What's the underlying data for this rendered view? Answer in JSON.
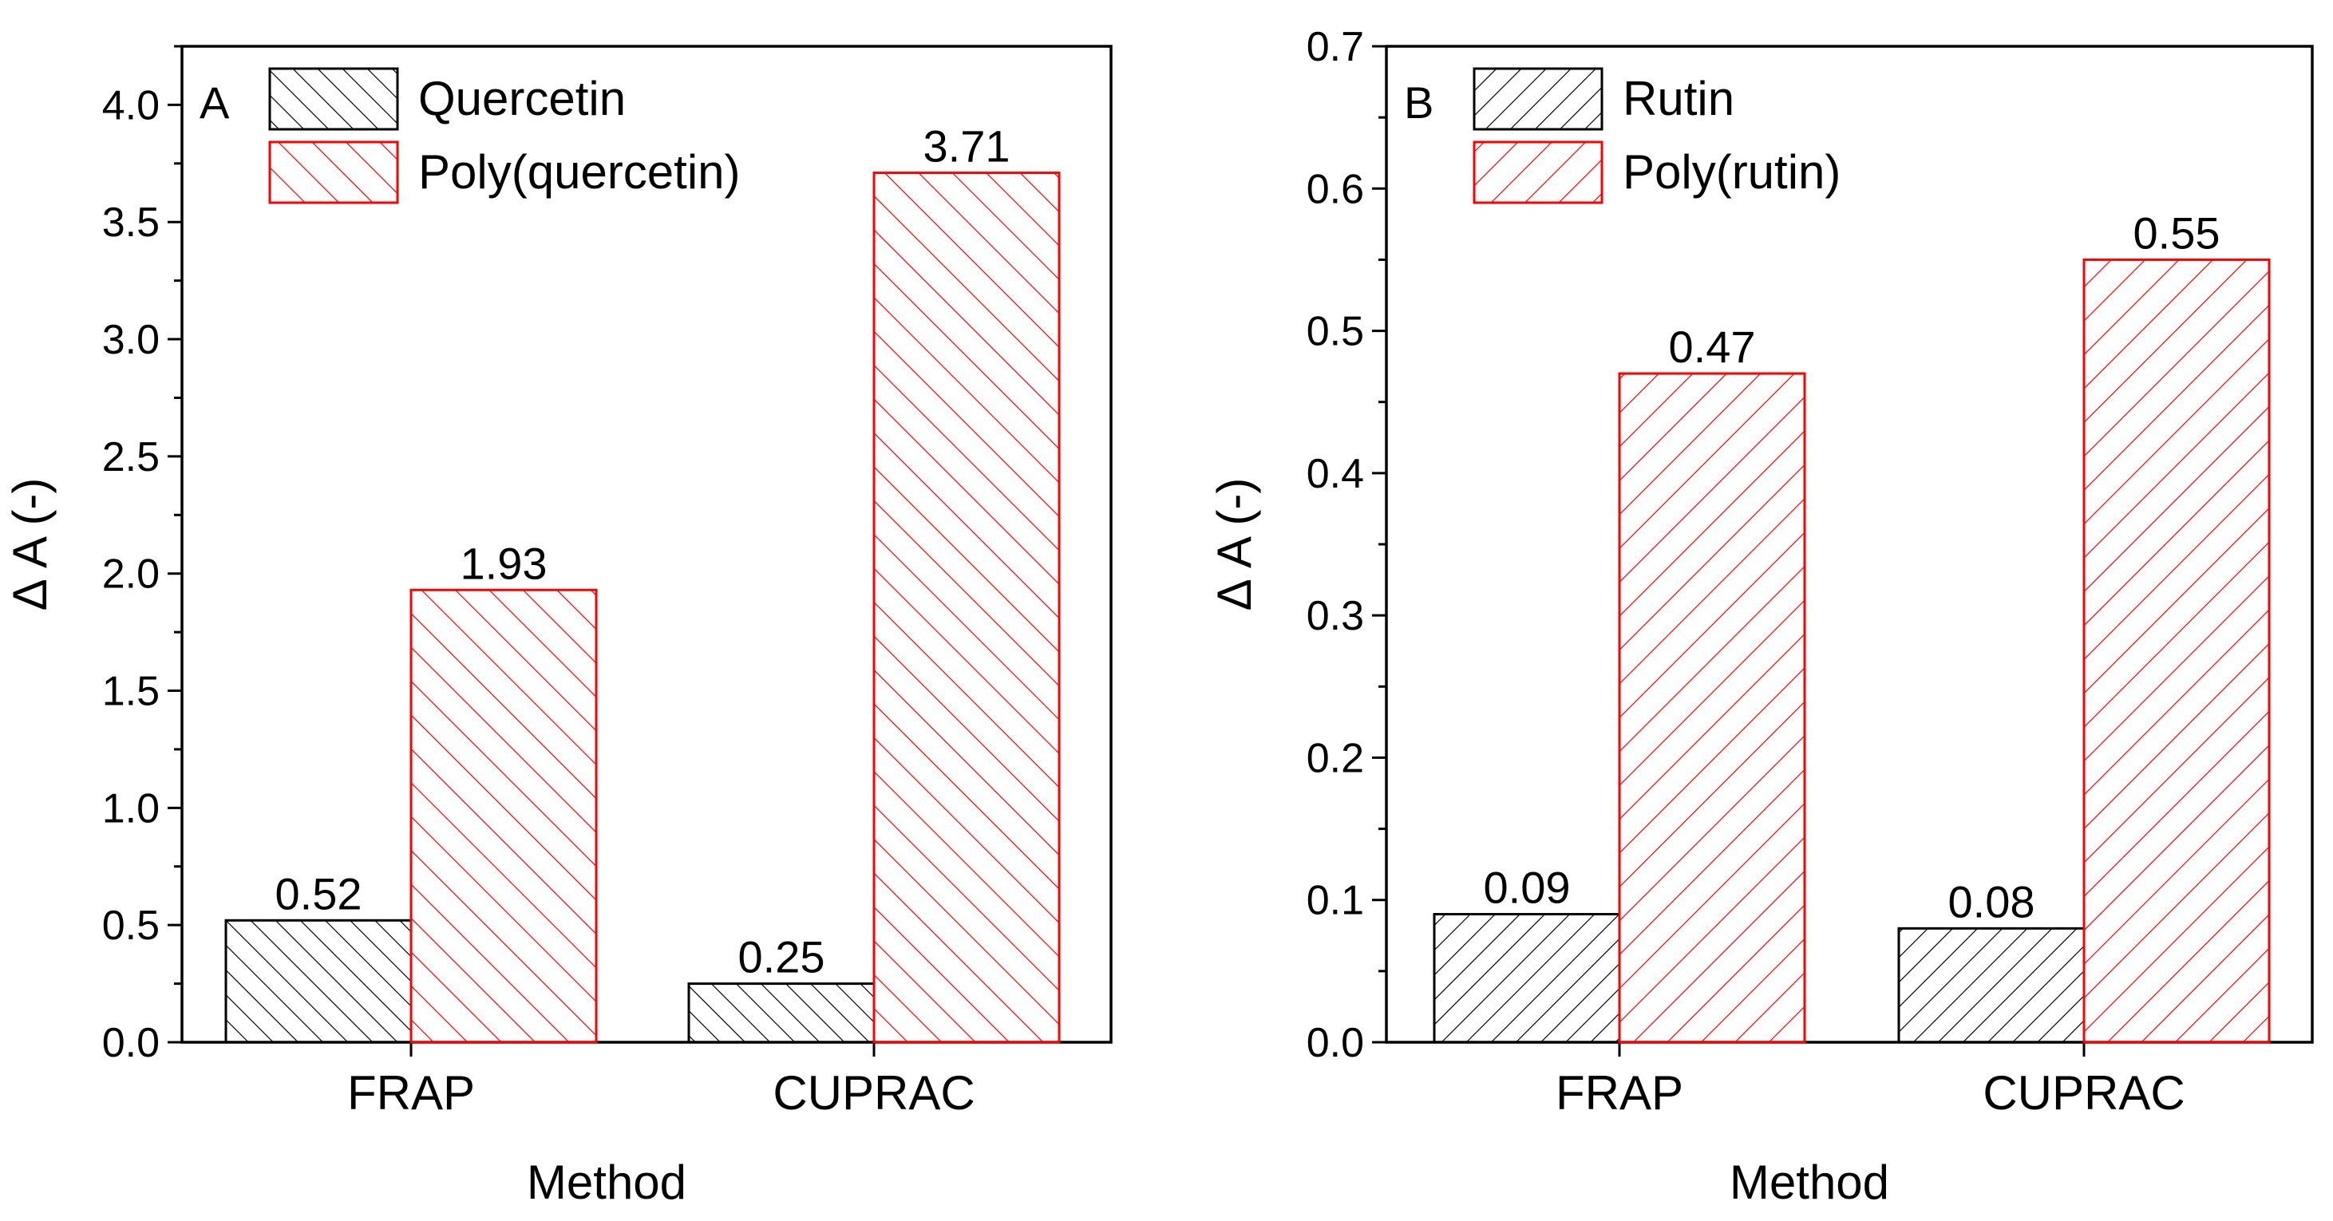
{
  "chart_data": [
    {
      "type": "bar",
      "panel_label": "A",
      "categories": [
        "FRAP",
        "CUPRAC"
      ],
      "series": [
        {
          "name": "Quercetin",
          "values": [
            0.52,
            0.25
          ],
          "color": "#000000",
          "hatch": "forward"
        },
        {
          "name": "Poly(quercetin)",
          "values": [
            1.93,
            3.71
          ],
          "color": "#ff0000",
          "hatch": "forward"
        }
      ],
      "data_labels": [
        [
          "0.52",
          "0.25"
        ],
        [
          "1.93",
          "3.71"
        ]
      ],
      "xlabel": "Method",
      "ylabel": "Δ A (-)",
      "ylim": [
        0,
        4.25
      ],
      "yticks": [
        0.0,
        0.5,
        1.0,
        1.5,
        2.0,
        2.5,
        3.0,
        3.5,
        4.0
      ],
      "ytick_labels": [
        "0.0",
        "0.5",
        "1.0",
        "1.5",
        "2.0",
        "2.5",
        "3.0",
        "3.5",
        "4.0"
      ],
      "minor_tick_step": 0.25,
      "grid": false,
      "legend_position": "top"
    },
    {
      "type": "bar",
      "panel_label": "B",
      "categories": [
        "FRAP",
        "CUPRAC"
      ],
      "series": [
        {
          "name": "Rutin",
          "values": [
            0.09,
            0.08
          ],
          "color": "#000000",
          "hatch": "backward"
        },
        {
          "name": "Poly(rutin)",
          "values": [
            0.47,
            0.55
          ],
          "color": "#ff0000",
          "hatch": "backward"
        }
      ],
      "data_labels": [
        [
          "0.09",
          "0.08"
        ],
        [
          "0.47",
          "0.55"
        ]
      ],
      "xlabel": "Method",
      "ylabel": "Δ A (-)",
      "ylim": [
        0,
        0.7
      ],
      "yticks": [
        0.0,
        0.1,
        0.2,
        0.3,
        0.4,
        0.5,
        0.6,
        0.7
      ],
      "ytick_labels": [
        "0.0",
        "0.1",
        "0.2",
        "0.3",
        "0.4",
        "0.5",
        "0.6",
        "0.7"
      ],
      "minor_tick_step": 0.05,
      "grid": false,
      "legend_position": "top"
    }
  ]
}
